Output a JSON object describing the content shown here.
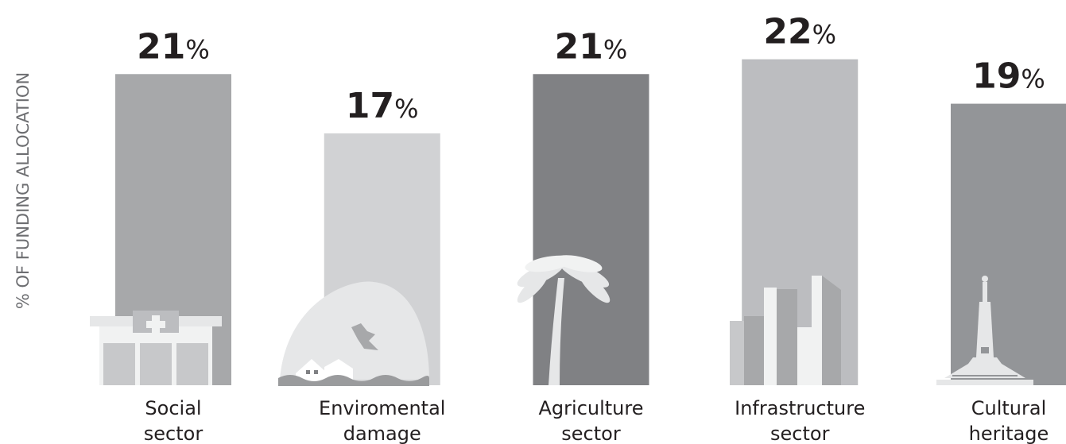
{
  "chart_data": {
    "type": "bar",
    "y_label": "% OF FUNDING ALLOCATION",
    "categories": [
      "Social sector",
      "Enviromental damage",
      "Agriculture sector",
      "Infrastructure sector",
      "Cultural heritage"
    ],
    "values": [
      21,
      17,
      21,
      22,
      19
    ],
    "value_labels": [
      "21%",
      "17%",
      "21%",
      "22%",
      "19%"
    ],
    "colors": [
      "#a7a8aa",
      "#d1d2d4",
      "#808184",
      "#bcbdc0",
      "#939598"
    ],
    "ylim": [
      0,
      26
    ]
  }
}
